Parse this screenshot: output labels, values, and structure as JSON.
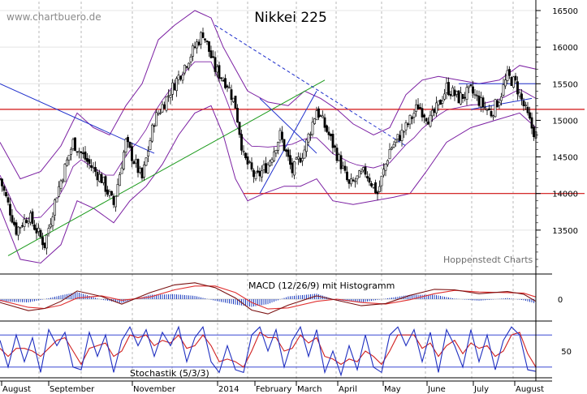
{
  "chart_data": {
    "type": "candlestick",
    "title": "Nikkei 225",
    "watermark": "www.chartbuero.de",
    "source": "Hoppenstedt Charts",
    "colors": {
      "grid": "#b8b8b8",
      "band": "#7b1fa2",
      "trend_blue": "#1f2fcc",
      "trend_green": "#1a9a1a",
      "level_red": "#d01010",
      "macd": "#7a1010",
      "signal": "#e03030",
      "histogram": "#2040c0",
      "stoch_k": "#2030c0",
      "stoch_d": "#d02020"
    },
    "x_labels": [
      "August",
      "September",
      "November",
      "2014",
      "February",
      "March",
      "April",
      "May",
      "June",
      "July",
      "August"
    ],
    "main_panel": {
      "ylim": [
        12900,
        16600
      ],
      "y_ticks": [
        "13500",
        "14000",
        "14500",
        "15000",
        "15500",
        "16000",
        "16500"
      ],
      "horizontal_levels": [
        15150,
        14000
      ],
      "close_path": [
        [
          0,
          14200
        ],
        [
          8,
          13500
        ],
        [
          14,
          13700
        ],
        [
          22,
          13300
        ],
        [
          28,
          14000
        ],
        [
          36,
          14700
        ],
        [
          44,
          14400
        ],
        [
          50,
          14200
        ],
        [
          56,
          13850
        ],
        [
          62,
          14700
        ],
        [
          70,
          14200
        ],
        [
          76,
          15000
        ],
        [
          86,
          15500
        ],
        [
          94,
          15900
        ],
        [
          100,
          16200
        ],
        [
          106,
          15700
        ],
        [
          112,
          15500
        ],
        [
          116,
          15200
        ],
        [
          120,
          14500
        ],
        [
          126,
          14200
        ],
        [
          132,
          14400
        ],
        [
          138,
          14800
        ],
        [
          144,
          14300
        ],
        [
          150,
          14600
        ],
        [
          156,
          15150
        ],
        [
          162,
          14800
        ],
        [
          168,
          14400
        ],
        [
          172,
          14100
        ],
        [
          180,
          14300
        ],
        [
          186,
          14000
        ],
        [
          192,
          14600
        ],
        [
          200,
          14900
        ],
        [
          206,
          15200
        ],
        [
          212,
          15000
        ],
        [
          216,
          15200
        ],
        [
          220,
          15450
        ],
        [
          226,
          15300
        ],
        [
          232,
          15400
        ],
        [
          238,
          15200
        ],
        [
          242,
          15100
        ],
        [
          246,
          15300
        ],
        [
          250,
          15600
        ],
        [
          254,
          15500
        ],
        [
          258,
          15200
        ],
        [
          262,
          14900
        ],
        [
          264,
          14800
        ]
      ],
      "bollinger_upper": [
        [
          0,
          14700
        ],
        [
          10,
          14200
        ],
        [
          20,
          14300
        ],
        [
          30,
          14650
        ],
        [
          38,
          15100
        ],
        [
          46,
          14900
        ],
        [
          54,
          14800
        ],
        [
          62,
          15200
        ],
        [
          70,
          15500
        ],
        [
          78,
          16100
        ],
        [
          86,
          16300
        ],
        [
          96,
          16500
        ],
        [
          104,
          16400
        ],
        [
          110,
          16000
        ],
        [
          116,
          15700
        ],
        [
          122,
          15400
        ],
        [
          132,
          15250
        ],
        [
          142,
          15200
        ],
        [
          150,
          15400
        ],
        [
          158,
          15300
        ],
        [
          166,
          15150
        ],
        [
          174,
          14950
        ],
        [
          184,
          14800
        ],
        [
          192,
          14900
        ],
        [
          200,
          15350
        ],
        [
          208,
          15550
        ],
        [
          216,
          15600
        ],
        [
          226,
          15550
        ],
        [
          236,
          15500
        ],
        [
          246,
          15550
        ],
        [
          256,
          15750
        ],
        [
          264,
          15700
        ]
      ],
      "bollinger_lower": [
        [
          0,
          13800
        ],
        [
          10,
          13100
        ],
        [
          20,
          13050
        ],
        [
          30,
          13300
        ],
        [
          38,
          13900
        ],
        [
          46,
          13800
        ],
        [
          56,
          13600
        ],
        [
          64,
          13900
        ],
        [
          72,
          14100
        ],
        [
          80,
          14400
        ],
        [
          88,
          14800
        ],
        [
          96,
          15100
        ],
        [
          104,
          15200
        ],
        [
          110,
          14800
        ],
        [
          116,
          14200
        ],
        [
          122,
          13900
        ],
        [
          130,
          14000
        ],
        [
          140,
          14100
        ],
        [
          148,
          14100
        ],
        [
          156,
          14200
        ],
        [
          164,
          13900
        ],
        [
          174,
          13850
        ],
        [
          184,
          13900
        ],
        [
          194,
          13950
        ],
        [
          202,
          14000
        ],
        [
          210,
          14300
        ],
        [
          220,
          14700
        ],
        [
          232,
          14900
        ],
        [
          244,
          15000
        ],
        [
          256,
          15100
        ],
        [
          264,
          14900
        ]
      ],
      "trendlines": [
        {
          "color": "blue",
          "points": [
            [
              0,
              15500
            ],
            [
              76,
              14550
            ]
          ]
        },
        {
          "color": "green",
          "points": [
            [
              4,
              13150
            ],
            [
              160,
              15550
            ]
          ]
        },
        {
          "color": "blue",
          "points": [
            [
              128,
              14000
            ],
            [
              156,
              15400
            ]
          ]
        },
        {
          "color": "blue",
          "points": [
            [
              156,
              14550
            ],
            [
              128,
              15300
            ]
          ]
        },
        {
          "color": "blue",
          "points": [
            [
              226,
              15500
            ],
            [
              264,
              15500
            ]
          ]
        },
        {
          "color": "blue",
          "points": [
            [
              232,
              15150
            ],
            [
              262,
              15300
            ]
          ]
        }
      ],
      "dashed_trendlines": [
        {
          "points": [
            [
              106,
              16300
            ],
            [
              200,
              14650
            ]
          ]
        }
      ]
    },
    "macd_panel": {
      "label": "MACD (12/26/9) mit Histogramm",
      "y_ticks": [
        "0"
      ],
      "ylim": [
        -400,
        400
      ],
      "macd": [
        [
          0,
          -60
        ],
        [
          14,
          -210
        ],
        [
          22,
          -170
        ],
        [
          30,
          -40
        ],
        [
          38,
          150
        ],
        [
          50,
          50
        ],
        [
          60,
          -90
        ],
        [
          74,
          120
        ],
        [
          86,
          260
        ],
        [
          96,
          300
        ],
        [
          106,
          210
        ],
        [
          116,
          20
        ],
        [
          124,
          -200
        ],
        [
          132,
          -270
        ],
        [
          142,
          -110
        ],
        [
          156,
          60
        ],
        [
          166,
          -20
        ],
        [
          178,
          -120
        ],
        [
          190,
          -80
        ],
        [
          202,
          70
        ],
        [
          214,
          180
        ],
        [
          224,
          170
        ],
        [
          236,
          100
        ],
        [
          250,
          140
        ],
        [
          258,
          90
        ],
        [
          264,
          -40
        ]
      ],
      "signal": [
        [
          0,
          -20
        ],
        [
          14,
          -150
        ],
        [
          22,
          -170
        ],
        [
          30,
          -110
        ],
        [
          38,
          20
        ],
        [
          50,
          60
        ],
        [
          60,
          -20
        ],
        [
          74,
          40
        ],
        [
          86,
          170
        ],
        [
          96,
          240
        ],
        [
          106,
          240
        ],
        [
          116,
          120
        ],
        [
          124,
          -60
        ],
        [
          132,
          -180
        ],
        [
          142,
          -160
        ],
        [
          156,
          -40
        ],
        [
          166,
          0
        ],
        [
          178,
          -60
        ],
        [
          190,
          -90
        ],
        [
          202,
          -10
        ],
        [
          214,
          100
        ],
        [
          224,
          160
        ],
        [
          236,
          130
        ],
        [
          250,
          120
        ],
        [
          258,
          110
        ],
        [
          264,
          40
        ]
      ]
    },
    "stochastic_panel": {
      "label": "Stochastik (5/3/3)",
      "y_ticks": [
        "50"
      ],
      "ylim": [
        0,
        100
      ],
      "levels": [
        80,
        20
      ],
      "k": [
        [
          0,
          70
        ],
        [
          4,
          20
        ],
        [
          8,
          80
        ],
        [
          12,
          30
        ],
        [
          16,
          75
        ],
        [
          20,
          10
        ],
        [
          24,
          90
        ],
        [
          28,
          60
        ],
        [
          32,
          85
        ],
        [
          36,
          20
        ],
        [
          40,
          15
        ],
        [
          44,
          85
        ],
        [
          48,
          40
        ],
        [
          52,
          80
        ],
        [
          56,
          10
        ],
        [
          60,
          70
        ],
        [
          64,
          95
        ],
        [
          68,
          60
        ],
        [
          72,
          90
        ],
        [
          76,
          40
        ],
        [
          80,
          85
        ],
        [
          84,
          60
        ],
        [
          88,
          95
        ],
        [
          92,
          30
        ],
        [
          96,
          75
        ],
        [
          100,
          95
        ],
        [
          104,
          30
        ],
        [
          108,
          10
        ],
        [
          112,
          60
        ],
        [
          116,
          15
        ],
        [
          120,
          10
        ],
        [
          124,
          80
        ],
        [
          128,
          95
        ],
        [
          132,
          50
        ],
        [
          136,
          90
        ],
        [
          140,
          20
        ],
        [
          144,
          70
        ],
        [
          148,
          95
        ],
        [
          152,
          40
        ],
        [
          156,
          90
        ],
        [
          160,
          10
        ],
        [
          164,
          50
        ],
        [
          168,
          5
        ],
        [
          172,
          60
        ],
        [
          176,
          15
        ],
        [
          180,
          80
        ],
        [
          184,
          20
        ],
        [
          188,
          10
        ],
        [
          192,
          80
        ],
        [
          196,
          95
        ],
        [
          200,
          60
        ],
        [
          204,
          90
        ],
        [
          208,
          30
        ],
        [
          212,
          85
        ],
        [
          216,
          10
        ],
        [
          220,
          90
        ],
        [
          224,
          60
        ],
        [
          228,
          20
        ],
        [
          232,
          90
        ],
        [
          236,
          30
        ],
        [
          240,
          80
        ],
        [
          244,
          15
        ],
        [
          248,
          70
        ],
        [
          252,
          95
        ],
        [
          256,
          80
        ],
        [
          260,
          15
        ],
        [
          264,
          12
        ]
      ],
      "d": [
        [
          0,
          55
        ],
        [
          4,
          40
        ],
        [
          8,
          55
        ],
        [
          12,
          55
        ],
        [
          16,
          50
        ],
        [
          20,
          40
        ],
        [
          24,
          55
        ],
        [
          28,
          70
        ],
        [
          32,
          75
        ],
        [
          36,
          50
        ],
        [
          40,
          25
        ],
        [
          44,
          55
        ],
        [
          48,
          60
        ],
        [
          52,
          65
        ],
        [
          56,
          40
        ],
        [
          60,
          50
        ],
        [
          64,
          80
        ],
        [
          68,
          75
        ],
        [
          72,
          80
        ],
        [
          76,
          60
        ],
        [
          80,
          70
        ],
        [
          84,
          65
        ],
        [
          88,
          80
        ],
        [
          92,
          55
        ],
        [
          96,
          60
        ],
        [
          100,
          80
        ],
        [
          104,
          60
        ],
        [
          108,
          30
        ],
        [
          112,
          35
        ],
        [
          116,
          30
        ],
        [
          120,
          20
        ],
        [
          124,
          50
        ],
        [
          128,
          85
        ],
        [
          132,
          75
        ],
        [
          136,
          75
        ],
        [
          140,
          50
        ],
        [
          144,
          55
        ],
        [
          148,
          80
        ],
        [
          152,
          65
        ],
        [
          156,
          75
        ],
        [
          160,
          40
        ],
        [
          164,
          35
        ],
        [
          168,
          25
        ],
        [
          172,
          35
        ],
        [
          176,
          30
        ],
        [
          180,
          50
        ],
        [
          184,
          40
        ],
        [
          188,
          25
        ],
        [
          192,
          50
        ],
        [
          196,
          80
        ],
        [
          200,
          80
        ],
        [
          204,
          80
        ],
        [
          208,
          55
        ],
        [
          212,
          65
        ],
        [
          216,
          40
        ],
        [
          220,
          60
        ],
        [
          224,
          70
        ],
        [
          228,
          45
        ],
        [
          232,
          65
        ],
        [
          236,
          55
        ],
        [
          240,
          60
        ],
        [
          244,
          40
        ],
        [
          248,
          50
        ],
        [
          252,
          80
        ],
        [
          256,
          85
        ],
        [
          260,
          45
        ],
        [
          264,
          20
        ]
      ]
    }
  }
}
